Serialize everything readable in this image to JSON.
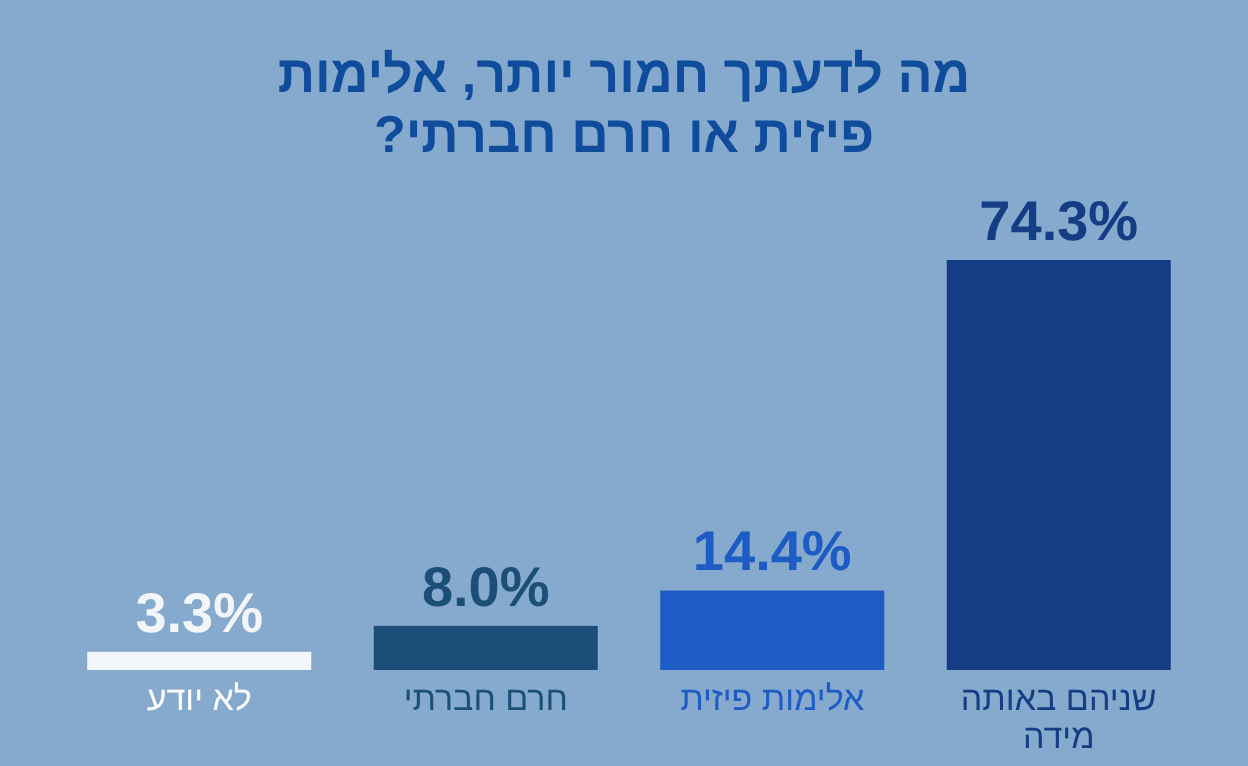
{
  "chart_data": {
    "type": "bar",
    "title": "מה לדעתך חמור יותר, אלימות פיזית או חרם חברתי?",
    "categories": [
      "לא יודע",
      "חרם חברתי",
      "אלימות פיזית",
      "שניהם באותה מידה"
    ],
    "values": [
      3.3,
      8.0,
      14.4,
      74.3
    ],
    "value_labels": [
      "3.3%",
      "8.0%",
      "14.4%",
      "74.3%"
    ],
    "colors": [
      "#f2f6fb",
      "#1b4f78",
      "#1c5cc4",
      "#143d84"
    ]
  }
}
